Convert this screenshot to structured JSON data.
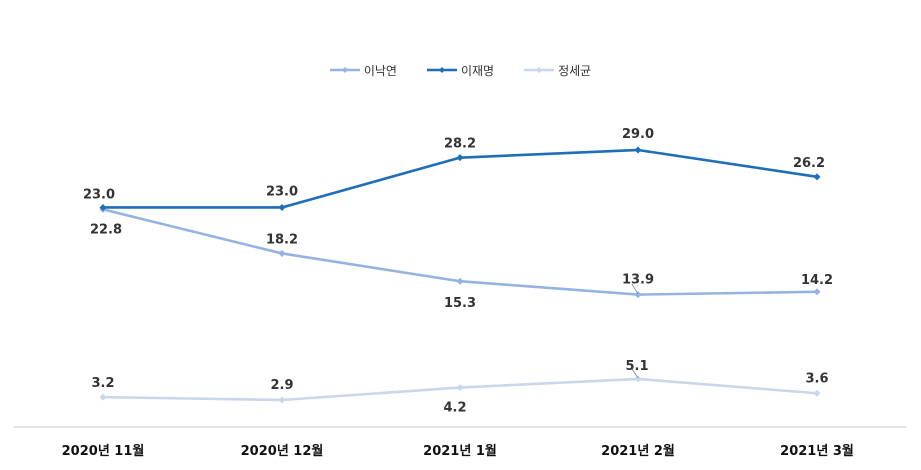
{
  "chart_data": {
    "type": "line",
    "categories": [
      "2020년 11월",
      "2020년 12월",
      "2021년 1월",
      "2021년 2월",
      "2021년 3월"
    ],
    "series": [
      {
        "name": "이낙연",
        "color": "#95b3e0",
        "values": [
          22.8,
          18.2,
          15.3,
          13.9,
          14.2
        ]
      },
      {
        "name": "이재명",
        "color": "#1f6eb8",
        "values": [
          23.0,
          23.0,
          28.2,
          29.0,
          26.2
        ]
      },
      {
        "name": "정세균",
        "color": "#c8d7ec",
        "values": [
          3.2,
          2.9,
          4.2,
          5.1,
          3.6
        ]
      }
    ],
    "value_labels": [
      [
        "22.8",
        "18.2",
        "15.3",
        "13.9",
        "14.2"
      ],
      [
        "23.0",
        "23.0",
        "28.2",
        "29.0",
        "26.2"
      ],
      [
        "3.2",
        "2.9",
        "4.2",
        "5.1",
        "3.6"
      ]
    ],
    "legend_position": "top-center",
    "grid": false
  }
}
